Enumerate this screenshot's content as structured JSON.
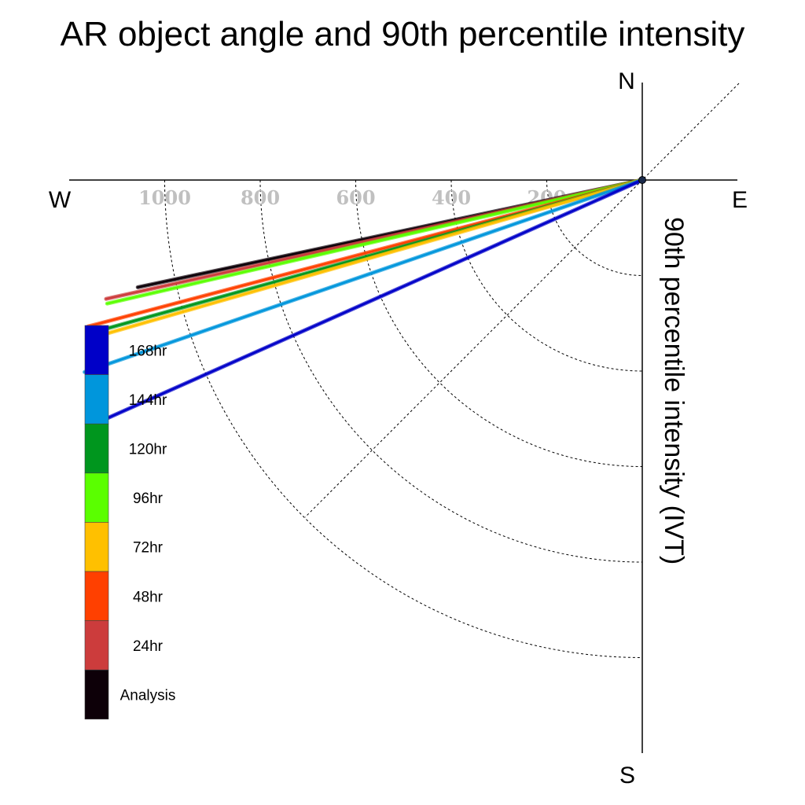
{
  "chart_data": {
    "type": "polar-line",
    "title": "AR object angle and 90th percentile intensity",
    "ylabel": "90th percentile intensity (IVT)",
    "compass": {
      "north": "N",
      "south": "S",
      "east": "E",
      "west": "W"
    },
    "radial_ticks": [
      "200",
      "400",
      "600",
      "800",
      "1000"
    ],
    "radial_tick_values": [
      200,
      400,
      600,
      800,
      1000
    ],
    "series": [
      {
        "name": "Analysis",
        "color": "#0d0008",
        "angle_deg": 12.0,
        "intensity": 1080
      },
      {
        "name": "24hr",
        "color": "#cc3c3c",
        "angle_deg": 12.5,
        "intensity": 1150
      },
      {
        "name": "96hr",
        "color": "#5aff00",
        "angle_deg": 13.0,
        "intensity": 1150
      },
      {
        "name": "48hr",
        "color": "#ff4000",
        "angle_deg": 14.8,
        "intensity": 1200
      },
      {
        "name": "120hr",
        "color": "#00961e",
        "angle_deg": 15.5,
        "intensity": 1190
      },
      {
        "name": "72hr",
        "color": "#ffc000",
        "angle_deg": 16.0,
        "intensity": 1165
      },
      {
        "name": "144hr",
        "color": "#0096dc",
        "angle_deg": 19.0,
        "intensity": 1235
      },
      {
        "name": "168hr",
        "color": "#0000c8",
        "angle_deg": 24.0,
        "intensity": 1250
      }
    ],
    "legend": [
      {
        "label": "168hr",
        "color": "#0000c8"
      },
      {
        "label": "144hr",
        "color": "#0096dc"
      },
      {
        "label": "120hr",
        "color": "#00961e"
      },
      {
        "label": "96hr",
        "color": "#5aff00"
      },
      {
        "label": "72hr",
        "color": "#ffc000"
      },
      {
        "label": "48hr",
        "color": "#ff4000"
      },
      {
        "label": "24hr",
        "color": "#cc3c3c"
      },
      {
        "label": "Analysis",
        "color": "#0d0008"
      }
    ],
    "grid": true,
    "legend_position": "bottom-left"
  }
}
